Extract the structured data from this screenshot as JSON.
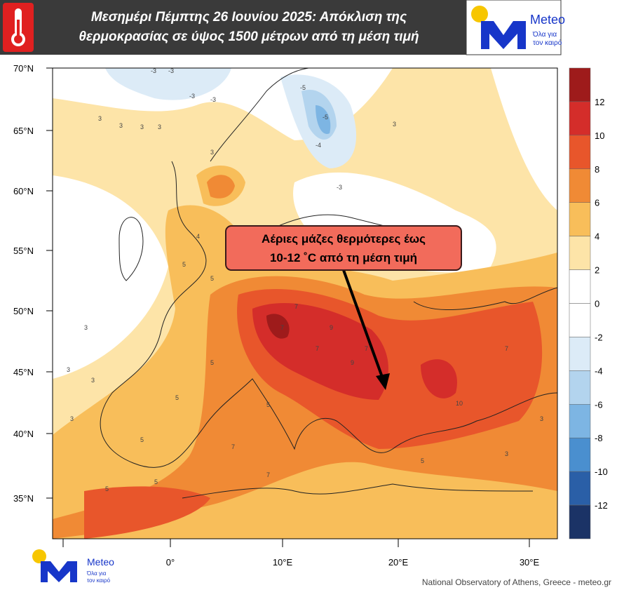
{
  "header": {
    "title_lines": [
      "Μεσημέρι Πέμπτης 26 Ιουνίου 2025: Απόκλιση της",
      "θερμοκρασίας σε ύψος 1500 μέτρων από τη μέση τιμή"
    ],
    "logo": {
      "name": "Meteo",
      "tagline": [
        "Όλα για",
        "τον καιρό"
      ]
    }
  },
  "map": {
    "lat_labels": [
      "70°N",
      "65°N",
      "60°N",
      "55°N",
      "50°N",
      "45°N",
      "40°N",
      "35°N"
    ],
    "lon_labels": [
      "0°",
      "10°E",
      "20°E",
      "30°E"
    ],
    "callout": [
      "Αέριες μάζες θερμότερες έως",
      "10-12 ˚C από τη μέση τιμή"
    ],
    "contour_labels": [
      -3,
      -3,
      -3,
      -3,
      -5,
      -5,
      -4,
      -3,
      3,
      3,
      3,
      3,
      3,
      3,
      3,
      4,
      5,
      5,
      5,
      5,
      5,
      7,
      7,
      7,
      7,
      9,
      9,
      10,
      7,
      5,
      5,
      3,
      3,
      3,
      5,
      7,
      7,
      5,
      3,
      3
    ]
  },
  "colorbar": {
    "ticks": [
      12,
      10,
      8,
      6,
      4,
      2,
      0,
      -2,
      -4,
      -6,
      -8,
      -10,
      -12
    ],
    "colors": [
      "#9e1b1b",
      "#d42d2a",
      "#e8562b",
      "#f08a35",
      "#f8be5a",
      "#fde4a8",
      "#ffffff",
      "#ffffff",
      "#dcebf7",
      "#b3d4ee",
      "#7db5e3",
      "#4a8fcf",
      "#2a5fa7",
      "#1b3366"
    ]
  },
  "footer": {
    "credit": "National Observatory of Athens, Greece - meteo.gr"
  }
}
